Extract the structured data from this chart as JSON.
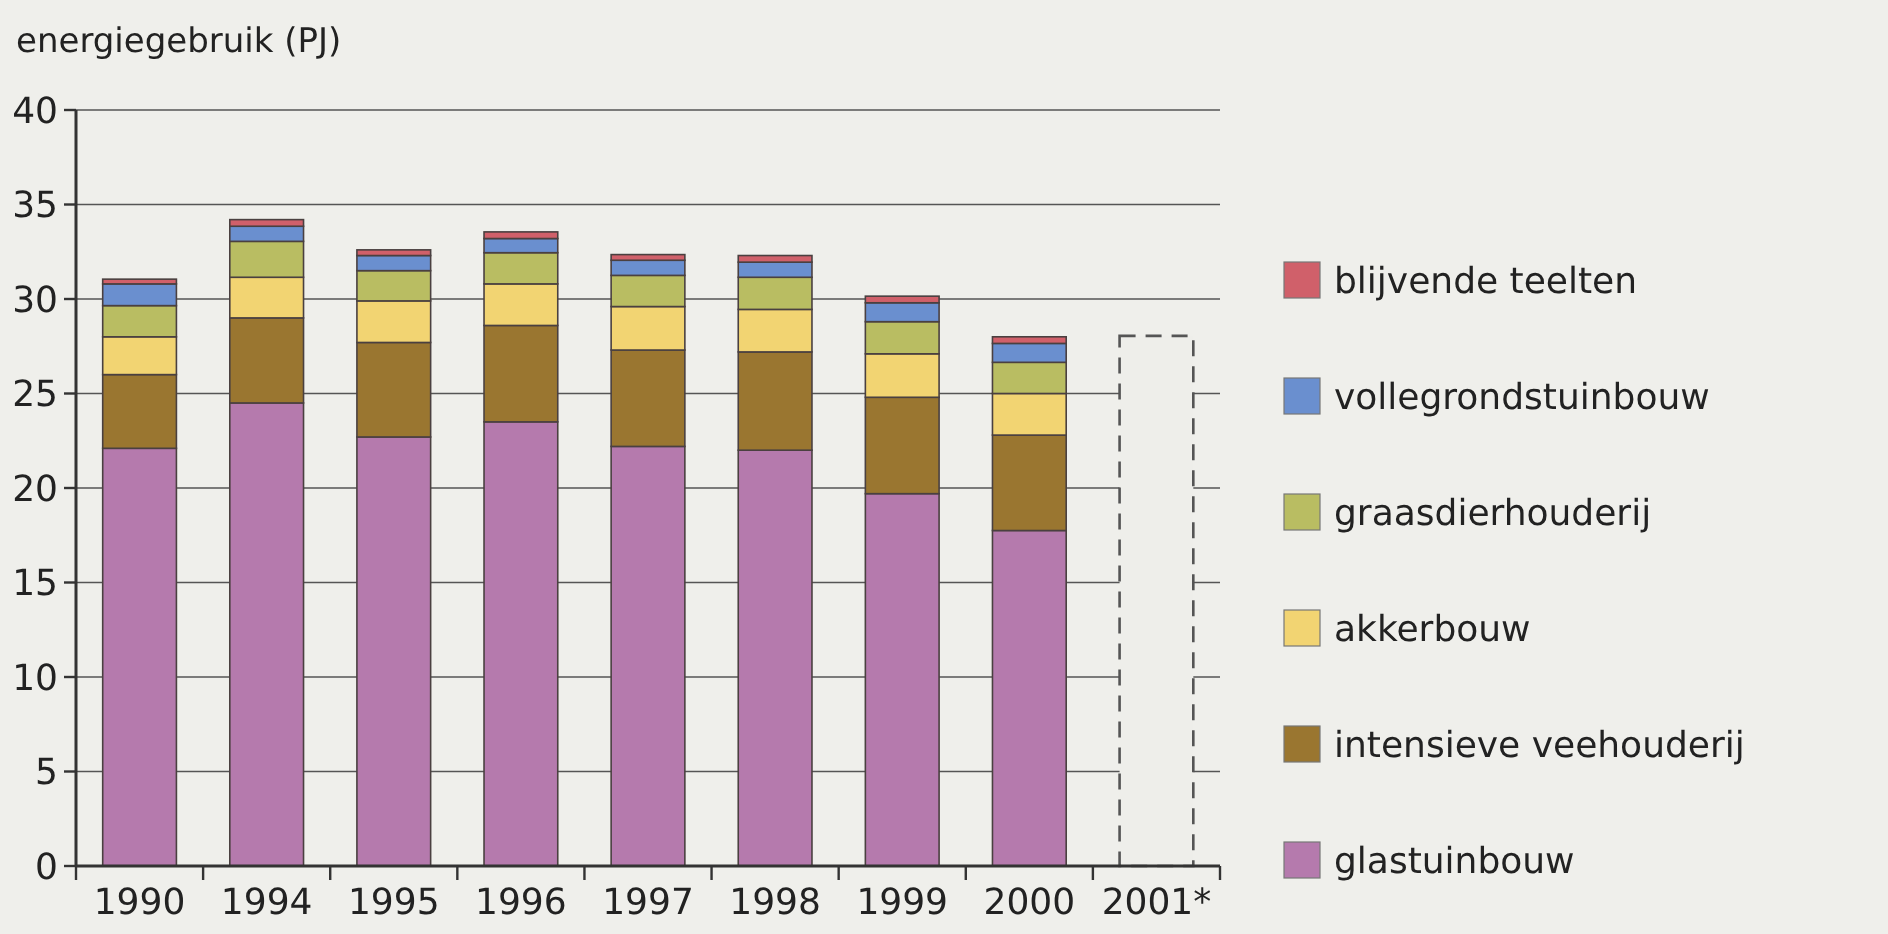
{
  "chart_data": {
    "type": "bar",
    "stacked": true,
    "ylabel": "energiegebruik (PJ)",
    "categories": [
      "1990",
      "1994",
      "1995",
      "1996",
      "1997",
      "1998",
      "1999",
      "2000",
      "2001*"
    ],
    "series": [
      {
        "name": "glastuinbouw",
        "color": "#b57aad",
        "values": [
          22.1,
          24.5,
          22.7,
          23.5,
          22.2,
          22.0,
          19.7,
          17.75,
          null
        ]
      },
      {
        "name": "intensieve veehouderij",
        "color": "#9a7630",
        "values": [
          3.9,
          4.5,
          5.0,
          5.1,
          5.1,
          5.2,
          5.1,
          5.05,
          null
        ]
      },
      {
        "name": "akkerbouw",
        "color": "#f2d472",
        "values": [
          2.0,
          2.15,
          2.2,
          2.2,
          2.3,
          2.25,
          2.3,
          2.2,
          null
        ]
      },
      {
        "name": "graasdierhouderij",
        "color": "#b9bd62",
        "values": [
          1.65,
          1.9,
          1.6,
          1.65,
          1.65,
          1.7,
          1.7,
          1.65,
          null
        ]
      },
      {
        "name": "vollegrondstuinbouw",
        "color": "#6a8fcf",
        "values": [
          1.15,
          0.8,
          0.8,
          0.75,
          0.8,
          0.8,
          1.0,
          1.0,
          null
        ]
      },
      {
        "name": "blijvende teelten",
        "color": "#d0606a",
        "values": [
          0.25,
          0.35,
          0.3,
          0.35,
          0.3,
          0.35,
          0.35,
          0.35,
          null
        ]
      },
      {
        "color": "#eeeeea",
        "line_style": "dashed",
        "values": [
          null,
          null,
          null,
          null,
          null,
          null,
          null,
          null,
          28.05
        ]
      }
    ],
    "ylim": [
      0,
      40
    ],
    "yticks": [
      0,
      5,
      10,
      15,
      20,
      25,
      30,
      35,
      40
    ],
    "grid": "y",
    "legend": "right"
  }
}
